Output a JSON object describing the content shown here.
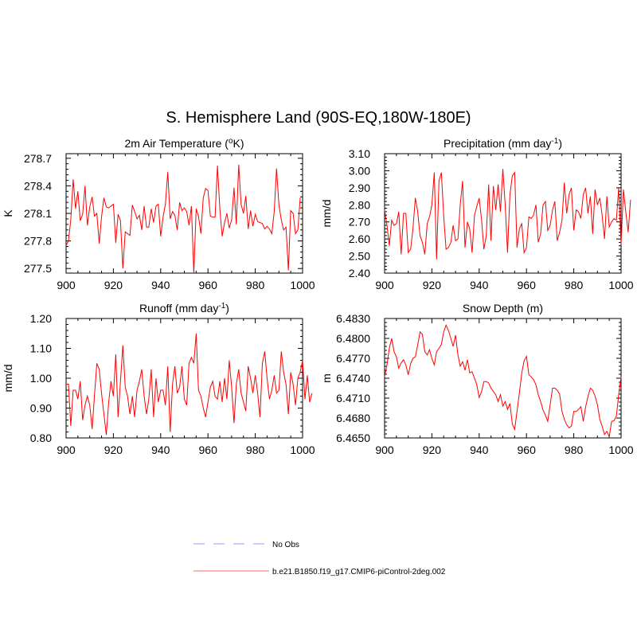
{
  "figure": {
    "title": "S. Hemisphere Land (90S-EQ,180W-180E)",
    "colors": {
      "model": "#ff0000",
      "obs": "#9999ff",
      "axis": "#000000"
    }
  },
  "legend": {
    "entries": [
      {
        "label": "No Obs",
        "style": "dashed",
        "color": "#9999ff"
      },
      {
        "label": "b.e21.B1850.f19_g17.CMIP6-piControl-2deg.002",
        "style": "solid",
        "color": "#ff0000"
      }
    ]
  },
  "chart_data": [
    {
      "id": "tas",
      "type": "line",
      "title_parts": [
        "2m Air Temperature (",
        "o",
        "K)"
      ],
      "ylabel": "K",
      "xlabel": "",
      "xlim": [
        900,
        1000
      ],
      "ylim": [
        277.45,
        278.75
      ],
      "xticks": [
        900,
        920,
        940,
        960,
        980,
        1000
      ],
      "yticks": [
        "277.5",
        "277.8",
        "278.1",
        "278.4",
        "278.7"
      ],
      "x_start": 900,
      "series": [
        {
          "name": "b.e21.B1850.f19_g17.CMIP6-piControl-2deg.002",
          "values": [
            277.75,
            277.8,
            278.03,
            278.47,
            278.15,
            278.34,
            278.02,
            278.09,
            278.4,
            277.97,
            278.17,
            278.28,
            278.07,
            278.1,
            277.77,
            278.06,
            278.27,
            278.17,
            278.16,
            278.18,
            278.2,
            277.78,
            278.09,
            278.02,
            277.5,
            277.9,
            277.88,
            277.86,
            278.19,
            278.12,
            278.04,
            278.08,
            277.92,
            278.18,
            277.95,
            277.95,
            278.15,
            278.0,
            278.18,
            278.2,
            277.85,
            278.06,
            278.2,
            278.55,
            278.04,
            278.12,
            278.08,
            277.92,
            278.22,
            278.13,
            278.16,
            278.12,
            277.97,
            278.18,
            277.45,
            278.15,
            278.07,
            277.88,
            278.27,
            278.37,
            278.35,
            278.07,
            278.06,
            278.06,
            278.62,
            278.15,
            277.85,
            278.0,
            278.1,
            277.94,
            278.03,
            278.38,
            277.98,
            278.63,
            278.2,
            278.1,
            278.29,
            277.93,
            278.13,
            277.96,
            278.09,
            278.01,
            278.0,
            277.99,
            277.93,
            277.96,
            277.93,
            277.88,
            278.12,
            278.59,
            278.19,
            278.03,
            277.92,
            277.95,
            277.48,
            278.13,
            278.1,
            277.88,
            277.92,
            278.27
          ]
        }
      ]
    },
    {
      "id": "precip",
      "type": "line",
      "title_parts": [
        "Precipitation (mm day",
        "-1",
        ")"
      ],
      "ylabel": "mm/d",
      "xlabel": "",
      "xlim": [
        900,
        1000
      ],
      "ylim": [
        2.4,
        3.1
      ],
      "xticks": [
        900,
        920,
        940,
        960,
        980,
        1000
      ],
      "yticks": [
        "2.40",
        "2.50",
        "2.60",
        "2.70",
        "2.80",
        "2.90",
        "3.00",
        "3.10"
      ],
      "x_start": 900,
      "series": [
        {
          "name": "b.e21.B1850.f19_g17.CMIP6-piControl-2deg.002",
          "values": [
            2.77,
            2.68,
            2.56,
            2.71,
            2.68,
            2.69,
            2.76,
            2.51,
            2.75,
            2.75,
            2.52,
            2.54,
            2.66,
            2.84,
            2.76,
            2.62,
            2.58,
            2.51,
            2.69,
            2.73,
            2.8,
            2.99,
            2.48,
            2.94,
            2.99,
            2.73,
            2.54,
            2.55,
            2.58,
            2.68,
            2.59,
            2.6,
            2.8,
            2.94,
            2.55,
            2.7,
            2.66,
            2.52,
            2.74,
            2.79,
            2.84,
            2.71,
            2.54,
            2.62,
            2.92,
            2.59,
            2.91,
            2.77,
            2.92,
            2.76,
            3.01,
            2.8,
            2.52,
            2.86,
            2.97,
            2.99,
            2.55,
            2.66,
            2.69,
            2.52,
            2.55,
            2.73,
            2.72,
            2.74,
            2.8,
            2.58,
            2.63,
            2.8,
            2.82,
            2.65,
            2.68,
            2.77,
            2.82,
            2.59,
            2.64,
            2.71,
            2.93,
            2.75,
            2.86,
            2.9,
            2.65,
            2.77,
            2.76,
            2.72,
            2.86,
            2.9,
            2.75,
            2.85,
            2.63,
            2.89,
            2.8,
            2.84,
            2.74,
            2.6,
            2.85,
            2.67,
            2.7,
            2.72,
            2.71,
            2.9,
            2.57,
            2.89,
            2.76,
            2.64,
            2.83
          ]
        }
      ]
    },
    {
      "id": "runoff",
      "type": "line",
      "title_parts": [
        "Runoff (mm day",
        "-1",
        ")"
      ],
      "ylabel": "mm/d",
      "xlabel": "",
      "xlim": [
        900,
        1000
      ],
      "ylim": [
        0.8,
        1.2
      ],
      "xticks": [
        900,
        920,
        940,
        960,
        980,
        1000
      ],
      "yticks": [
        "0.80",
        "0.90",
        "1.00",
        "1.10",
        "1.20"
      ],
      "x_start": 900,
      "series": [
        {
          "name": "b.e21.B1850.f19_g17.CMIP6-piControl-2deg.002",
          "values": [
            0.98,
            0.98,
            0.84,
            0.96,
            0.96,
            0.93,
            0.99,
            0.86,
            0.91,
            0.94,
            0.91,
            0.83,
            0.94,
            1.05,
            1.03,
            0.95,
            0.88,
            0.81,
            0.92,
            0.99,
            0.94,
            1.08,
            0.87,
            0.99,
            1.11,
            0.97,
            0.94,
            0.88,
            0.94,
            0.87,
            0.96,
            0.99,
            1.03,
            0.94,
            0.88,
            0.93,
            1.03,
            0.87,
            1.0,
            0.92,
            0.96,
            0.96,
            0.91,
            1.04,
            0.82,
            0.98,
            1.04,
            0.95,
            0.97,
            1.04,
            0.93,
            0.91,
            1.05,
            1.07,
            1.05,
            1.15,
            0.96,
            0.94,
            0.9,
            0.87,
            0.92,
            0.97,
            0.99,
            0.94,
            0.93,
            0.99,
            0.92,
            1.0,
            0.93,
            1.06,
            0.97,
            0.85,
            0.98,
            1.03,
            0.95,
            0.92,
            0.89,
            1.04,
            1.0,
            0.95,
            1.01,
            0.95,
            0.87,
            1.05,
            1.09,
            1.0,
            0.93,
            0.96,
            1.01,
            0.95,
            0.96,
            1.09,
            1.02,
            0.98,
            0.88,
            1.02,
            0.98,
            0.91,
            1.0,
            1.02,
            1.06,
            0.93,
            1.01,
            0.92,
            0.95
          ]
        }
      ]
    },
    {
      "id": "snow",
      "type": "line",
      "title_parts": [
        "Snow Depth (m)"
      ],
      "ylabel": "m",
      "xlabel": "",
      "xlim": [
        900,
        1000
      ],
      "ylim": [
        6.465,
        6.483
      ],
      "xticks": [
        900,
        920,
        940,
        960,
        980,
        1000
      ],
      "yticks": [
        "6.4650",
        "6.4680",
        "6.4710",
        "6.4740",
        "6.4770",
        "6.4800",
        "6.4830"
      ],
      "x_start": 900,
      "series": [
        {
          "name": "b.e21.B1850.f19_g17.CMIP6-piControl-2deg.002",
          "values": [
            6.4742,
            6.476,
            6.4785,
            6.48,
            6.478,
            6.4772,
            6.4755,
            6.4763,
            6.4768,
            6.476,
            6.4745,
            6.4762,
            6.477,
            6.4772,
            6.479,
            6.481,
            6.4806,
            6.478,
            6.4775,
            6.4783,
            6.477,
            6.476,
            6.478,
            6.4785,
            6.4791,
            6.481,
            6.482,
            6.4812,
            6.48,
            6.4788,
            6.4805,
            6.4775,
            6.4758,
            6.4765,
            6.4752,
            6.4768,
            6.4748,
            6.475,
            6.474,
            6.473,
            6.4711,
            6.472,
            6.4735,
            6.4735,
            6.4733,
            6.4725,
            6.472,
            6.4715,
            6.4705,
            6.4715,
            6.4698,
            6.4705,
            6.4693,
            6.4702,
            6.4671,
            6.4663,
            6.469,
            6.4718,
            6.4748,
            6.4766,
            6.4773,
            6.4745,
            6.4742,
            6.4738,
            6.473,
            6.4715,
            6.4705,
            6.4692,
            6.4684,
            6.4675,
            6.47,
            6.4725,
            6.4725,
            6.4722,
            6.4716,
            6.469,
            6.4678,
            6.467,
            6.4665,
            6.4668,
            6.469,
            6.469,
            6.4693,
            6.4697,
            6.4675,
            6.4697,
            6.4712,
            6.4725,
            6.4722,
            6.4713,
            6.47,
            6.4678,
            6.4668,
            6.4655,
            6.466,
            6.4652,
            6.4675,
            6.4676,
            6.4683,
            6.4715,
            6.4742
          ]
        }
      ]
    }
  ]
}
